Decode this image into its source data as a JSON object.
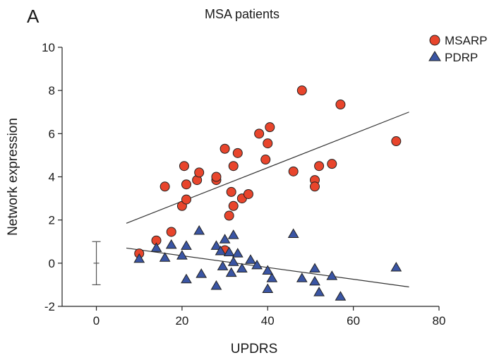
{
  "chart_data": {
    "type": "scatter",
    "panel_label": "A",
    "title": "MSA patients",
    "xlabel": "UPDRS",
    "ylabel": "Network expression",
    "xlim": [
      -8,
      80
    ],
    "ylim": [
      -2,
      10
    ],
    "xticks": [
      0,
      20,
      40,
      60,
      80
    ],
    "yticks": [
      -2,
      0,
      2,
      4,
      6,
      8,
      10
    ],
    "grid": false,
    "legend_position": "top-right",
    "error_bar": {
      "x": 0,
      "center": 0,
      "low": -1,
      "high": 1
    },
    "series": [
      {
        "name": "MSARP",
        "marker": "circle",
        "color": "#e8452c",
        "points": [
          [
            10,
            0.45
          ],
          [
            14,
            1.05
          ],
          [
            17.5,
            1.45
          ],
          [
            16,
            3.55
          ],
          [
            20,
            2.65
          ],
          [
            21,
            2.95
          ],
          [
            20.5,
            4.5
          ],
          [
            21,
            3.65
          ],
          [
            23.5,
            3.85
          ],
          [
            24,
            4.2
          ],
          [
            28,
            3.85
          ],
          [
            28,
            4.0
          ],
          [
            30,
            0.6
          ],
          [
            31,
            2.2
          ],
          [
            32,
            2.65
          ],
          [
            31.5,
            3.3
          ],
          [
            32,
            4.5
          ],
          [
            30,
            5.3
          ],
          [
            33,
            5.1
          ],
          [
            34,
            3.0
          ],
          [
            35.5,
            3.2
          ],
          [
            38,
            6.0
          ],
          [
            40,
            5.55
          ],
          [
            40.5,
            6.3
          ],
          [
            39.5,
            4.8
          ],
          [
            46,
            4.25
          ],
          [
            48,
            8.0
          ],
          [
            51,
            3.85
          ],
          [
            51,
            3.55
          ],
          [
            52,
            4.5
          ],
          [
            55,
            4.6
          ],
          [
            57,
            7.35
          ],
          [
            70,
            5.65
          ]
        ],
        "trend": [
          [
            7,
            1.85
          ],
          [
            73,
            7.0
          ]
        ]
      },
      {
        "name": "PDRP",
        "marker": "triangle",
        "color": "#3a55a4",
        "points": [
          [
            10,
            0.2
          ],
          [
            14,
            0.7
          ],
          [
            16,
            0.25
          ],
          [
            17.5,
            0.85
          ],
          [
            20,
            0.35
          ],
          [
            21,
            0.8
          ],
          [
            21,
            -0.75
          ],
          [
            24,
            1.5
          ],
          [
            24.5,
            -0.5
          ],
          [
            28,
            0.8
          ],
          [
            28,
            -1.05
          ],
          [
            29,
            0.55
          ],
          [
            30,
            1.1
          ],
          [
            29.5,
            -0.15
          ],
          [
            31,
            0.5
          ],
          [
            31.5,
            -0.45
          ],
          [
            32,
            1.3
          ],
          [
            32,
            0.05
          ],
          [
            33,
            0.45
          ],
          [
            34,
            -0.25
          ],
          [
            36,
            0.15
          ],
          [
            37.5,
            -0.1
          ],
          [
            40,
            -0.35
          ],
          [
            40,
            -1.2
          ],
          [
            41,
            -0.7
          ],
          [
            46,
            1.35
          ],
          [
            48,
            -0.7
          ],
          [
            51,
            -0.25
          ],
          [
            51,
            -0.85
          ],
          [
            52,
            -1.35
          ],
          [
            55,
            -0.6
          ],
          [
            57,
            -1.55
          ],
          [
            70,
            -0.2
          ]
        ],
        "trend": [
          [
            7,
            0.7
          ],
          [
            73,
            -1.1
          ]
        ]
      }
    ]
  }
}
